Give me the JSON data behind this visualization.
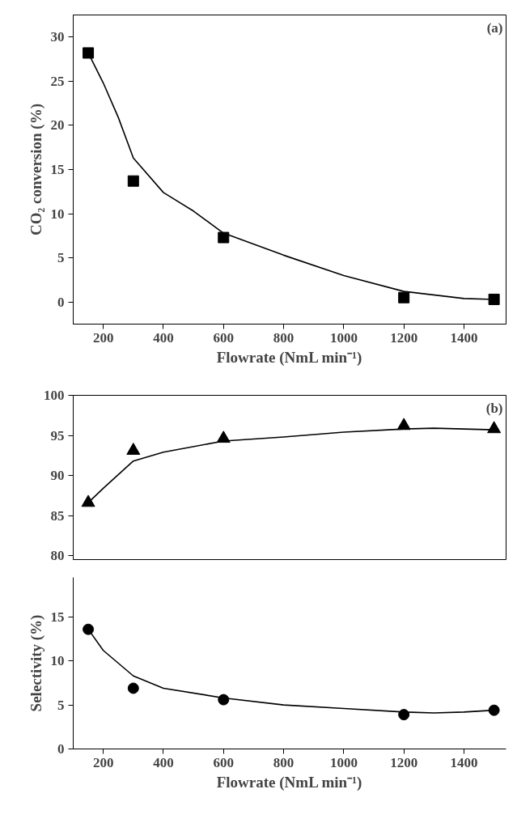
{
  "chart_data": [
    {
      "type": "scatter",
      "xlabel": "Flowrate (NmL min⁻¹)",
      "ylabel": "CO₂ conversion (%)",
      "annotations": [
        "(a)"
      ],
      "xlim": [
        100,
        1540
      ],
      "ylim": [
        -2.5,
        32.5
      ],
      "xticks": [
        200,
        400,
        600,
        800,
        1000,
        1200,
        1400
      ],
      "yticks": [
        0,
        5,
        10,
        15,
        20,
        25,
        30
      ],
      "x": [
        150,
        300,
        600,
        1200,
        1500
      ],
      "series": [
        {
          "marker": "square",
          "color": "#000000",
          "values": [
            28.2,
            13.7,
            7.3,
            0.5,
            0.3
          ]
        },
        {
          "type": "line",
          "color": "#000000",
          "x": [
            150,
            200,
            250,
            300,
            400,
            500,
            600,
            800,
            1000,
            1200,
            1400,
            1500
          ],
          "values": [
            28.2,
            24.8,
            20.9,
            16.3,
            12.4,
            10.3,
            7.8,
            5.3,
            3.0,
            1.2,
            0.4,
            0.3
          ]
        }
      ]
    },
    {
      "type": "scatter",
      "annotations": [
        "(b)"
      ],
      "tick_labels": "y",
      "xlim": [
        100,
        1540
      ],
      "ylim": [
        79.5,
        100
      ],
      "yticks": [
        80,
        85,
        90,
        95,
        100
      ],
      "x": [
        150,
        300,
        600,
        1200,
        1500
      ],
      "series": [
        {
          "marker": "triangle",
          "color": "#000000",
          "values": [
            86.6,
            93.1,
            94.6,
            96.2,
            95.8
          ]
        },
        {
          "type": "line",
          "color": "#000000",
          "x": [
            150,
            200,
            300,
            400,
            600,
            800,
            1000,
            1200,
            1300,
            1400,
            1500
          ],
          "values": [
            86.6,
            88.4,
            91.8,
            92.9,
            94.3,
            94.8,
            95.4,
            95.8,
            95.9,
            95.8,
            95.7
          ]
        }
      ]
    },
    {
      "type": "scatter",
      "xlabel": "Flowrate (NmL min⁻¹)",
      "ylabel": "Selectivity (%)",
      "xlim": [
        100,
        1540
      ],
      "ylim": [
        0,
        19.5
      ],
      "xticks": [
        200,
        400,
        600,
        800,
        1000,
        1200,
        1400
      ],
      "yticks": [
        0,
        5,
        10,
        15
      ],
      "x": [
        150,
        300,
        600,
        1200,
        1500
      ],
      "series": [
        {
          "marker": "circle",
          "color": "#000000",
          "values": [
            13.6,
            6.9,
            5.6,
            3.9,
            4.4
          ]
        },
        {
          "type": "line",
          "color": "#000000",
          "x": [
            150,
            200,
            300,
            400,
            600,
            800,
            1000,
            1200,
            1300,
            1400,
            1500
          ],
          "values": [
            13.6,
            11.2,
            8.3,
            6.9,
            5.8,
            5.0,
            4.6,
            4.2,
            4.1,
            4.2,
            4.4
          ]
        }
      ]
    }
  ]
}
